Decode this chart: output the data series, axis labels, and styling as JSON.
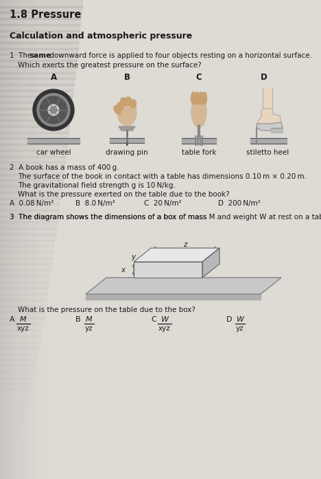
{
  "title": "1.8 Pressure",
  "subtitle": "Calculation and atmospheric pressure",
  "bg_color": "#e0ddd8",
  "text_color": "#1a1a1a",
  "q1_labels_top": [
    "A",
    "B",
    "C",
    "D"
  ],
  "q1_labels_bot": [
    "car wheel",
    "drawing pin",
    "table fork",
    "stiletto heel"
  ],
  "q2_line1": "2  A book has a mass of 400 g.",
  "q2_line2": "The surface of the book in contact with a table has dimensions 0.10 m × 0.20 m.",
  "q2_line3": "The gravitational field strength g is 10 N/kg.",
  "q2_line4": "What is the pressure exerted on the table due to the book?",
  "q2_opts_letter": [
    "A",
    "B",
    "C",
    "D"
  ],
  "q2_opts_val": [
    "0.08 N/m²",
    "8.0 N/m²",
    "20 N/m²",
    "200 N/m²"
  ],
  "q3_line1a": "3  The diagram shows the dimensions of a box of mass ",
  "q3_line1b": "M",
  "q3_line1c": " and weight ",
  "q3_line1d": "W",
  "q3_line1e": " at rest on a table.",
  "q3_line2": "What is the pressure on the table due to the box?",
  "q3_letters": [
    "A",
    "B",
    "C",
    "D"
  ],
  "q3_nums": [
    "M",
    "M",
    "W",
    "W"
  ],
  "q3_dens": [
    "xyz",
    "yz",
    "xyz",
    "yz"
  ],
  "lw": 0.8,
  "img_line_color": "#444444",
  "ground_color": "#aaaaaa"
}
